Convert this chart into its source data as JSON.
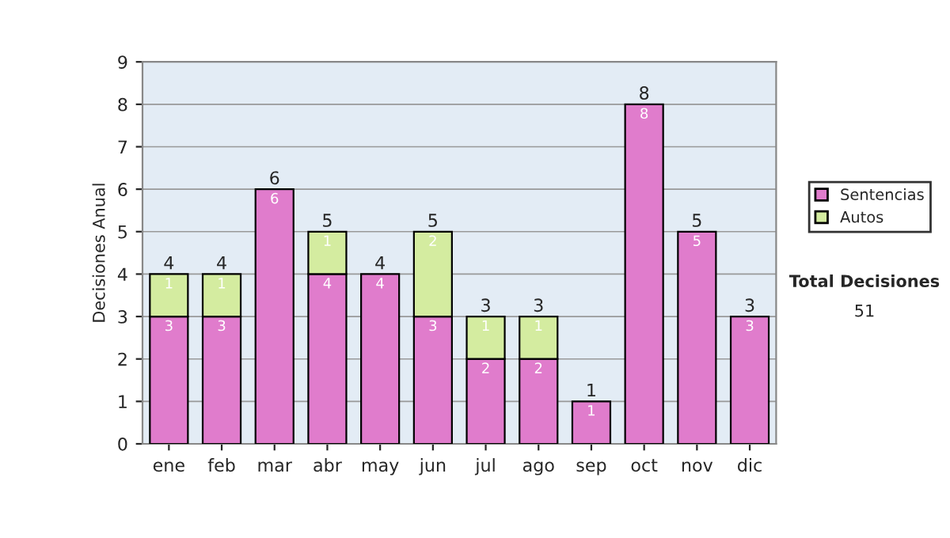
{
  "chart_data": {
    "type": "bar",
    "stacked": true,
    "ylabel": "Decisiones Anual",
    "categories": [
      "ene",
      "feb",
      "mar",
      "abr",
      "may",
      "jun",
      "jul",
      "ago",
      "sep",
      "oct",
      "nov",
      "dic"
    ],
    "series": [
      {
        "name": "Sentencias",
        "color": "#e07ccc",
        "values": [
          3,
          3,
          6,
          4,
          4,
          3,
          2,
          2,
          1,
          8,
          5,
          3
        ],
        "value_labels": [
          "3",
          "3",
          "6",
          "4",
          "4",
          "3",
          "2",
          "2",
          "1",
          "8",
          "5",
          "3"
        ]
      },
      {
        "name": "Autos",
        "color": "#d4eca0",
        "values": [
          1,
          1,
          0,
          1,
          0,
          2,
          1,
          1,
          0,
          0,
          0,
          0
        ],
        "value_labels": [
          "1",
          "1",
          null,
          "1",
          null,
          "2",
          "1",
          "1",
          null,
          null,
          null,
          null
        ]
      }
    ],
    "totals": [
      "4",
      "4",
      "6",
      "5",
      "4",
      "5",
      "3",
      "3",
      "1",
      "8",
      "5",
      "3"
    ],
    "ylim": [
      0,
      9
    ],
    "yticks": [
      0,
      1,
      2,
      3,
      4,
      5,
      6,
      7,
      8,
      9
    ],
    "grid": "y",
    "legend": "right",
    "annotations": [
      "Total Decisiones",
      "51"
    ]
  }
}
